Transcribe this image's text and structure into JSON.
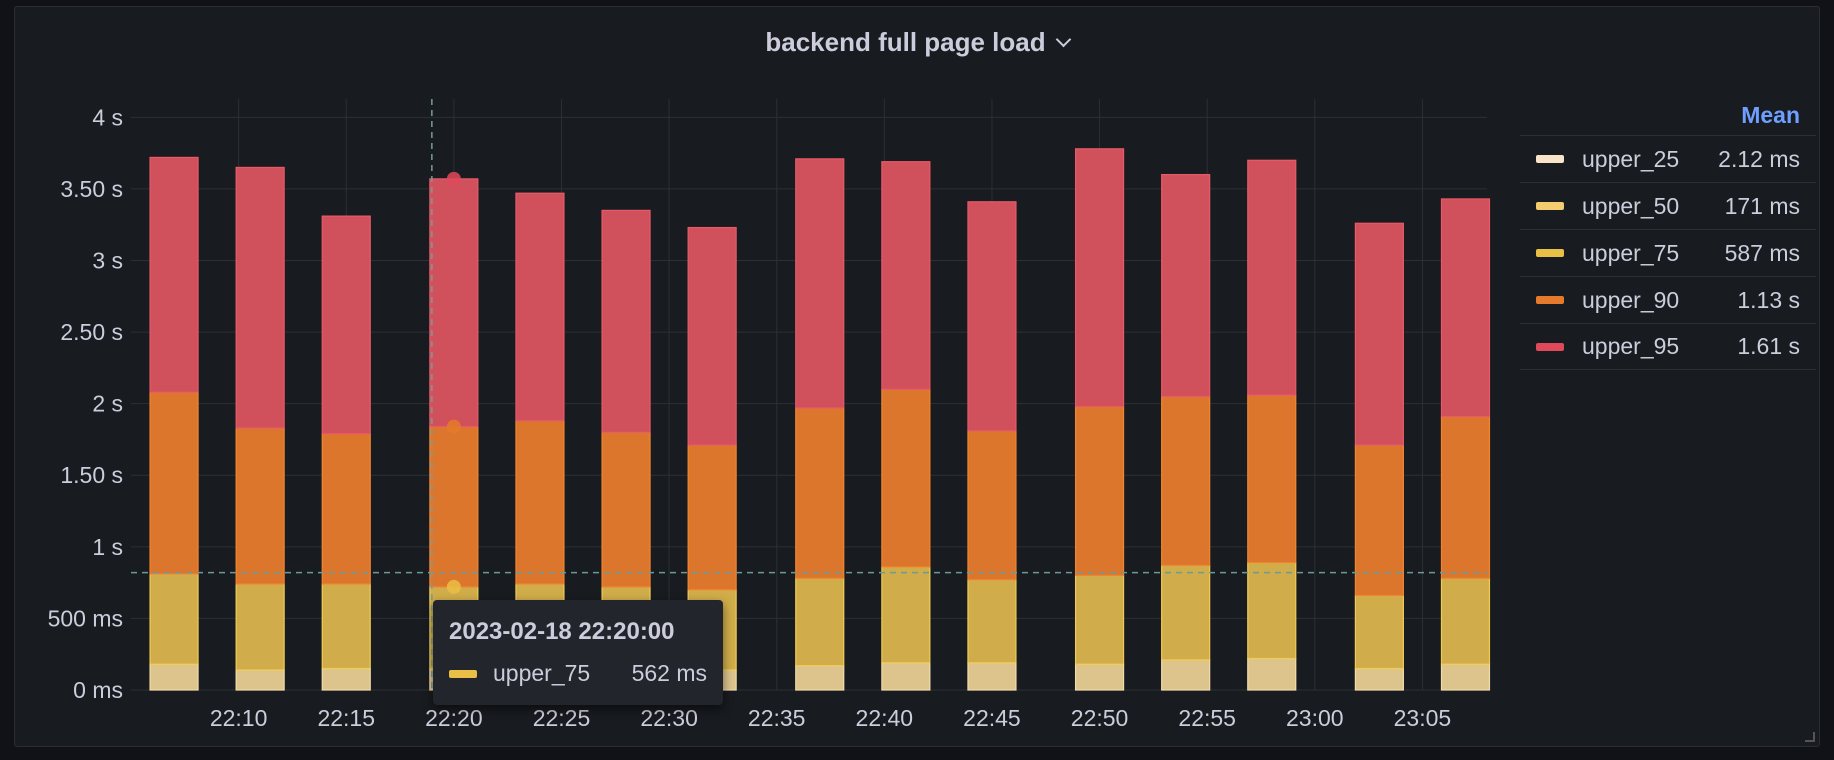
{
  "panel": {
    "title": "backend full page load"
  },
  "legend": {
    "header": "Mean",
    "items": [
      {
        "name": "upper_25",
        "value": "2.12 ms",
        "color": "#f8e4c9"
      },
      {
        "name": "upper_50",
        "value": "171 ms",
        "color": "#f2cc6f"
      },
      {
        "name": "upper_75",
        "value": "587 ms",
        "color": "#e9bf45"
      },
      {
        "name": "upper_90",
        "value": "1.13 s",
        "color": "#e57a2a"
      },
      {
        "name": "upper_95",
        "value": "1.61 s",
        "color": "#e0495a"
      }
    ]
  },
  "tooltip": {
    "time": "2023-02-18 22:20:00",
    "series": "upper_75",
    "value": "562 ms",
    "color": "#e9bf45"
  },
  "chart_data": {
    "type": "bar",
    "stacked": true,
    "x_tick_labels": [
      "22:10",
      "22:15",
      "22:20",
      "22:25",
      "22:30",
      "22:35",
      "22:40",
      "22:45",
      "22:50",
      "22:55",
      "23:00",
      "23:05"
    ],
    "y_tick_labels": [
      "0 ms",
      "500 ms",
      "1 s",
      "1.50 s",
      "2 s",
      "2.50 s",
      "3 s",
      "3.50 s",
      "4 s"
    ],
    "ylim": [
      0,
      4.1
    ],
    "grid": true,
    "x": [
      "22:07",
      "22:11",
      "22:15",
      "22:20",
      "22:24",
      "22:28",
      "22:32",
      "22:37",
      "22:41",
      "22:45",
      "22:50",
      "22:54",
      "22:58",
      "23:03",
      "23:07"
    ],
    "stack_tops": {
      "upper_25": [
        0.18,
        0.14,
        0.15,
        0.15,
        0.14,
        0.15,
        0.14,
        0.17,
        0.19,
        0.19,
        0.18,
        0.21,
        0.22,
        0.15,
        0.18
      ],
      "upper_50": [
        0.18,
        0.14,
        0.15,
        0.15,
        0.14,
        0.15,
        0.14,
        0.17,
        0.19,
        0.19,
        0.18,
        0.21,
        0.22,
        0.15,
        0.18
      ],
      "upper_75": [
        0.81,
        0.74,
        0.74,
        0.72,
        0.74,
        0.72,
        0.7,
        0.78,
        0.86,
        0.77,
        0.8,
        0.87,
        0.89,
        0.66,
        0.78
      ],
      "upper_90": [
        2.08,
        1.83,
        1.79,
        1.84,
        1.88,
        1.8,
        1.71,
        1.97,
        2.1,
        1.81,
        1.98,
        2.05,
        2.06,
        1.71,
        1.91
      ],
      "upper_95": [
        3.72,
        3.65,
        3.31,
        3.57,
        3.47,
        3.35,
        3.23,
        3.71,
        3.69,
        3.41,
        3.78,
        3.6,
        3.7,
        3.26,
        3.43
      ]
    },
    "cursor_x": "22:20",
    "threshold_y": 0.82
  }
}
